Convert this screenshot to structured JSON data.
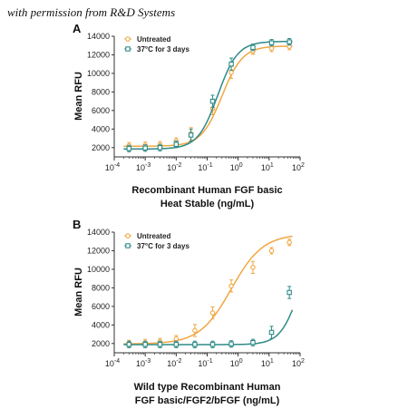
{
  "credit": "with permission from R&D Systems",
  "colors": {
    "series1": "#F0A742",
    "series2": "#2E8B87"
  },
  "chart_data": [
    {
      "type": "scatter",
      "panel": "A",
      "ylabel": "Mean RFU",
      "xlabel_lines": [
        "Recombinant Human FGF basic",
        "Heat Stable (ng/mL)"
      ],
      "xscale": "log",
      "xlim": [
        0.0001,
        100
      ],
      "ylim": [
        1000,
        14000
      ],
      "x_ticks": [
        {
          "base": "10",
          "exp": "-4"
        },
        {
          "base": "10",
          "exp": "-3"
        },
        {
          "base": "10",
          "exp": "-2"
        },
        {
          "base": "10",
          "exp": "-1"
        },
        {
          "base": "10",
          "exp": "0"
        },
        {
          "base": "10",
          "exp": "1"
        },
        {
          "base": "10",
          "exp": "2"
        }
      ],
      "y_ticks": [
        "2000",
        "4000",
        "6000",
        "8000",
        "10000",
        "12000",
        "14000"
      ],
      "legend_position": "top-left",
      "series": [
        {
          "name": "Untreated",
          "marker": "circle",
          "x": [
            0.0003,
            0.001,
            0.003,
            0.01,
            0.03,
            0.15,
            0.6,
            3,
            12,
            45
          ],
          "y": [
            2200,
            2250,
            2300,
            2700,
            3500,
            6200,
            10100,
            12400,
            12700,
            12900
          ],
          "fit": {
            "bottom": 2150,
            "top": 12950,
            "ec50": 0.3,
            "hill": 1.3
          }
        },
        {
          "name": "37°C for 3 days",
          "marker": "square",
          "x": [
            0.0003,
            0.001,
            0.003,
            0.01,
            0.03,
            0.15,
            0.6,
            3,
            12,
            45
          ],
          "y": [
            1900,
            1950,
            2000,
            2350,
            3350,
            7000,
            11000,
            12800,
            13300,
            13400
          ],
          "fit": {
            "bottom": 1850,
            "top": 13450,
            "ec50": 0.22,
            "hill": 1.35
          }
        }
      ]
    },
    {
      "type": "scatter",
      "panel": "B",
      "ylabel": "Mean RFU",
      "xlabel_lines": [
        "Wild type Recombinant Human",
        "FGF basic/FGF2/bFGF (ng/mL)"
      ],
      "xscale": "log",
      "xlim": [
        0.0001,
        100
      ],
      "ylim": [
        1000,
        14000
      ],
      "x_ticks": [
        {
          "base": "10",
          "exp": "-4"
        },
        {
          "base": "10",
          "exp": "-3"
        },
        {
          "base": "10",
          "exp": "-2"
        },
        {
          "base": "10",
          "exp": "-1"
        },
        {
          "base": "10",
          "exp": "0"
        },
        {
          "base": "10",
          "exp": "1"
        },
        {
          "base": "10",
          "exp": "2"
        }
      ],
      "y_ticks": [
        "2000",
        "4000",
        "6000",
        "8000",
        "10000",
        "12000",
        "14000"
      ],
      "legend_position": "top-left",
      "series": [
        {
          "name": "Untreated",
          "marker": "circle",
          "x": [
            0.0003,
            0.001,
            0.003,
            0.01,
            0.04,
            0.15,
            0.6,
            3,
            12,
            45
          ],
          "y": [
            2000,
            2100,
            2200,
            2500,
            3400,
            5300,
            8200,
            10200,
            12000,
            12900
          ],
          "fit": {
            "bottom": 1950,
            "top": 13800,
            "ec50": 0.6,
            "hill": 0.85
          }
        },
        {
          "name": "37°C for 3 days",
          "marker": "square",
          "x": [
            0.0003,
            0.001,
            0.003,
            0.01,
            0.04,
            0.15,
            0.6,
            3,
            12,
            45
          ],
          "y": [
            1900,
            1900,
            1900,
            1900,
            1900,
            1900,
            1950,
            2100,
            3200,
            7500
          ],
          "fit": {
            "bottom": 1880,
            "top": 14000,
            "ec50": 100,
            "hill": 1.4
          }
        }
      ]
    }
  ]
}
